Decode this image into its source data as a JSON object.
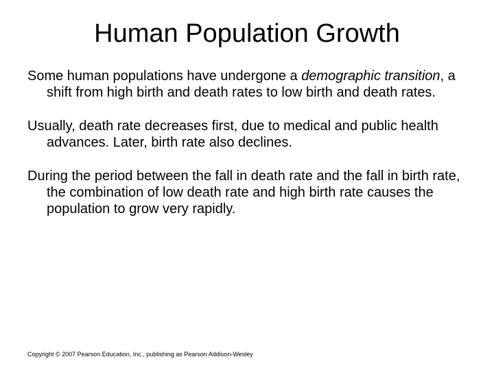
{
  "slide": {
    "title": "Human Population Growth",
    "paragraphs": {
      "p1_a": "Some human populations have undergone a ",
      "p1_b": "demographic transition",
      "p1_c": ", a shift from high birth and death rates to low birth and death rates.",
      "p2": "Usually, death rate decreases first, due to medical and public health advances. Later, birth rate also declines.",
      "p3": "During the period between the fall in death rate and the fall in birth rate, the combination of low death rate and high birth rate causes the population to grow very rapidly."
    },
    "copyright": "Copyright © 2007 Pearson Education, Inc., publishing as Pearson Addison-Wesley"
  },
  "style": {
    "background_color": "#ffffff",
    "text_color": "#000000",
    "title_fontsize": 38,
    "body_fontsize": 20,
    "copyright_fontsize": 9,
    "font_family": "Arial"
  }
}
